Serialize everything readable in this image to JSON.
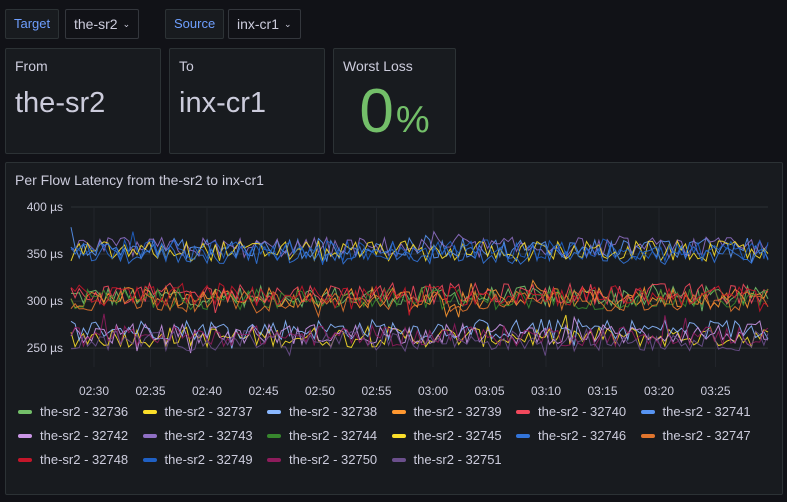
{
  "variables": {
    "target": {
      "label": "Target",
      "value": "the-sr2"
    },
    "source": {
      "label": "Source",
      "value": "inx-cr1"
    }
  },
  "stats": {
    "from": {
      "title": "From",
      "value": "the-sr2"
    },
    "to": {
      "title": "To",
      "value": "inx-cr1"
    },
    "worst_loss": {
      "title": "Worst Loss",
      "value": "0",
      "unit": "%",
      "color": "#73bf69"
    }
  },
  "chart_data": {
    "type": "line",
    "title": "Per Flow Latency from the-sr2 to inx-cr1",
    "unit": "µs",
    "y_ticks": [
      "400 µs",
      "350 µs",
      "300 µs",
      "250 µs"
    ],
    "ylim": [
      230,
      400
    ],
    "x_ticks": [
      "02:30",
      "02:35",
      "02:40",
      "02:45",
      "02:50",
      "02:55",
      "03:00",
      "03:05",
      "03:10",
      "03:15",
      "03:20",
      "03:25"
    ],
    "grid": true,
    "legend_placement": "bottom",
    "series": [
      {
        "name": "the-sr2 - 32736",
        "color": "#73bf69",
        "level": 305
      },
      {
        "name": "the-sr2 - 32737",
        "color": "#fade2a",
        "level": 262
      },
      {
        "name": "the-sr2 - 32738",
        "color": "#8ab8ff",
        "level": 270
      },
      {
        "name": "the-sr2 - 32739",
        "color": "#ff9830",
        "level": 304
      },
      {
        "name": "the-sr2 - 32740",
        "color": "#f2495c",
        "level": 308
      },
      {
        "name": "the-sr2 - 32741",
        "color": "#5794f2",
        "level": 356
      },
      {
        "name": "the-sr2 - 32742",
        "color": "#ca95e5",
        "level": 265
      },
      {
        "name": "the-sr2 - 32743",
        "color": "#8f6fc4",
        "level": 357
      },
      {
        "name": "the-sr2 - 32744",
        "color": "#37872d",
        "level": 302
      },
      {
        "name": "the-sr2 - 32745",
        "color": "#fade2a",
        "level": 353
      },
      {
        "name": "the-sr2 - 32746",
        "color": "#3274d9",
        "level": 350
      },
      {
        "name": "the-sr2 - 32747",
        "color": "#e0752d",
        "level": 300
      },
      {
        "name": "the-sr2 - 32748",
        "color": "#c4162a",
        "level": 306
      },
      {
        "name": "the-sr2 - 32749",
        "color": "#1f60c4",
        "level": 354
      },
      {
        "name": "the-sr2 - 32750",
        "color": "#8e1c5c",
        "level": 263
      },
      {
        "name": "the-sr2 - 32751",
        "color": "#6b4f8c",
        "level": 258
      }
    ]
  }
}
